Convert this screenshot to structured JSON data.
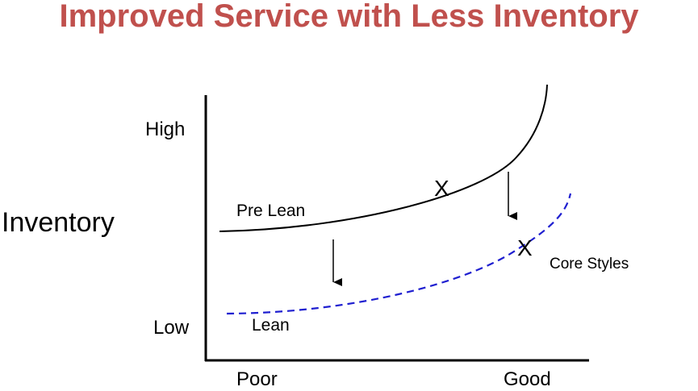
{
  "title": "Improved Service with Less Inventory",
  "axes": {
    "y_label": "Inventory",
    "y_high": "High",
    "y_low": "Low",
    "x_low": "Poor",
    "x_high": "Good"
  },
  "curves": {
    "pre_lean": {
      "label": "Pre Lean",
      "color": "#000000",
      "style": "solid"
    },
    "lean": {
      "label": "Lean",
      "color": "#1f1fd0",
      "style": "dashed"
    }
  },
  "annotations": {
    "core_styles": "Core Styles",
    "marker_symbol": "X"
  }
}
